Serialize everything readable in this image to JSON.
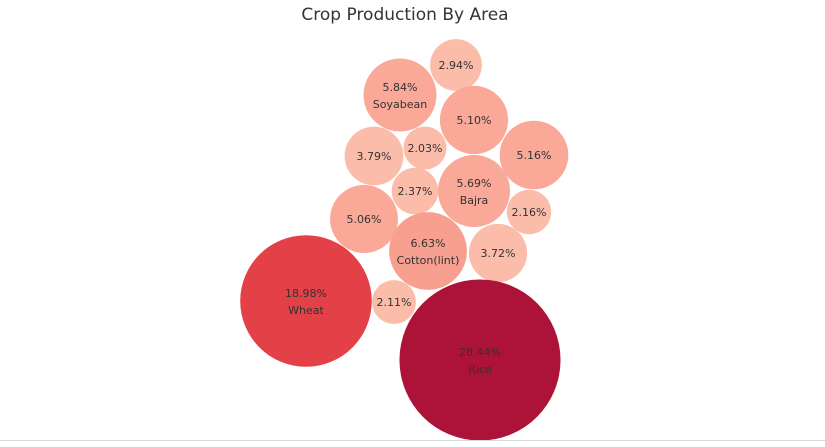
{
  "chart_data": {
    "type": "bubble",
    "title": "Crop Production By Area",
    "bubbles": [
      {
        "label": "2.94%",
        "value": 2.94,
        "name": "",
        "color": "#fcbcaa"
      },
      {
        "label": "5.84%",
        "value": 5.84,
        "name": "Soyabean",
        "color": "#faa898"
      },
      {
        "label": "5.10%",
        "value": 5.1,
        "name": "",
        "color": "#faa898"
      },
      {
        "label": "3.79%",
        "value": 3.79,
        "name": "",
        "color": "#fcbcaa"
      },
      {
        "label": "2.03%",
        "value": 2.03,
        "name": "",
        "color": "#fcbcaa"
      },
      {
        "label": "5.16%",
        "value": 5.16,
        "name": "",
        "color": "#faa898"
      },
      {
        "label": "2.37%",
        "value": 2.37,
        "name": "",
        "color": "#fcbcaa"
      },
      {
        "label": "5.69%",
        "value": 5.69,
        "name": "Bajra",
        "color": "#faa898"
      },
      {
        "label": "5.06%",
        "value": 5.06,
        "name": "",
        "color": "#faa898"
      },
      {
        "label": "2.16%",
        "value": 2.16,
        "name": "",
        "color": "#fcbcaa"
      },
      {
        "label": "6.63%",
        "value": 6.63,
        "name": "Cotton(lint)",
        "color": "#f8a08f"
      },
      {
        "label": "3.72%",
        "value": 3.72,
        "name": "",
        "color": "#fcbcaa"
      },
      {
        "label": "18.98%",
        "value": 18.98,
        "name": "Wheat",
        "color": "#e34048"
      },
      {
        "label": "2.11%",
        "value": 2.11,
        "name": "",
        "color": "#fcbcaa"
      },
      {
        "label": "28.44%",
        "value": 28.44,
        "name": "Rice",
        "color": "#ad1238"
      }
    ]
  }
}
